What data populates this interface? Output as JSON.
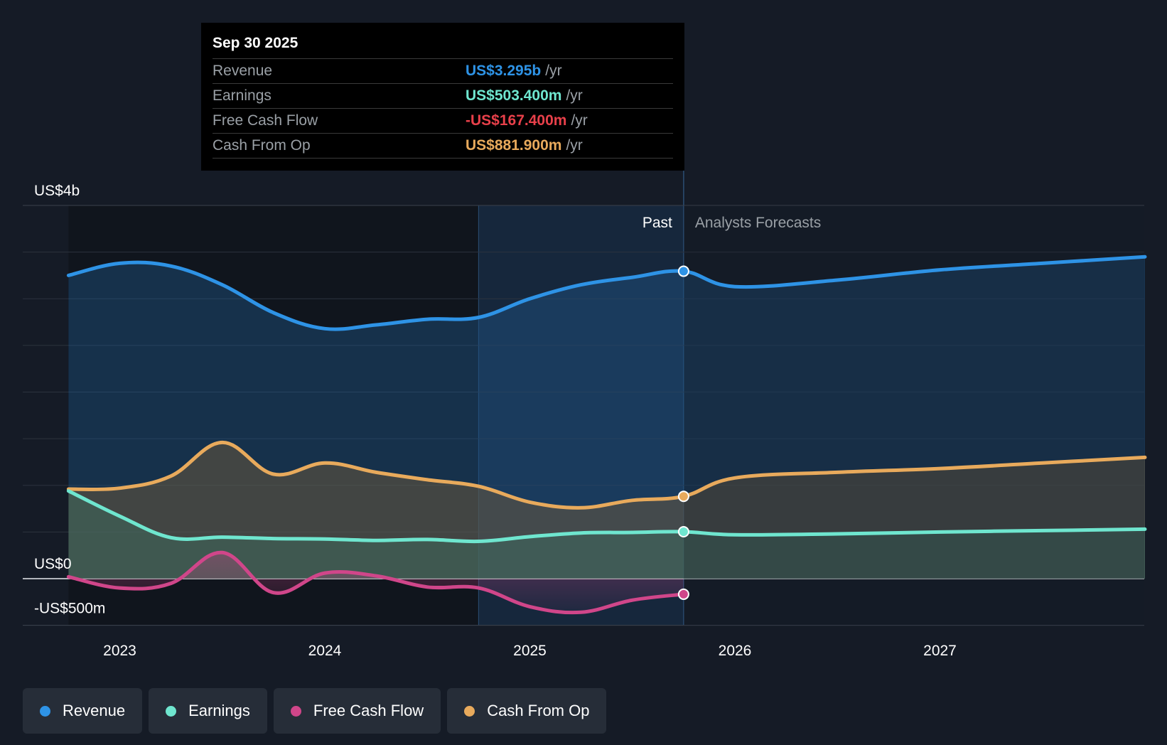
{
  "tooltip": {
    "date": "Sep 30 2025",
    "rows": [
      {
        "label": "Revenue",
        "value": "US$3.295b",
        "unit": "/yr",
        "color": "#2e93e6"
      },
      {
        "label": "Earnings",
        "value": "US$503.400m",
        "unit": "/yr",
        "color": "#6fe6cf"
      },
      {
        "label": "Free Cash Flow",
        "value": "-US$167.400m",
        "unit": "/yr",
        "color": "#e8404a"
      },
      {
        "label": "Cash From Op",
        "value": "US$881.900m",
        "unit": "/yr",
        "color": "#e8aa5c"
      }
    ]
  },
  "legend": [
    {
      "label": "Revenue",
      "color": "#2e93e6"
    },
    {
      "label": "Earnings",
      "color": "#6fe6cf"
    },
    {
      "label": "Free Cash Flow",
      "color": "#d0468a"
    },
    {
      "label": "Cash From Op",
      "color": "#e8aa5c"
    }
  ],
  "chart_data": {
    "type": "line",
    "ylim": [
      -500,
      4000
    ],
    "y_tick_labels": [
      {
        "value": 4000,
        "label": "US$4b"
      },
      {
        "value": 0,
        "label": "US$0"
      },
      {
        "value": -500,
        "label": "-US$500m"
      }
    ],
    "xlim": [
      2022.5,
      2028.0
    ],
    "x_ticks": [
      {
        "value": 2023,
        "label": "2023"
      },
      {
        "value": 2024,
        "label": "2024"
      },
      {
        "value": 2025,
        "label": "2025"
      },
      {
        "value": 2026,
        "label": "2026"
      },
      {
        "value": 2027,
        "label": "2027"
      }
    ],
    "past_label": "Past",
    "forecast_label": "Analysts Forecasts",
    "past_end": 2025.75,
    "highlight_start": 2024.75,
    "series": [
      {
        "name": "Revenue",
        "color": "#2e93e6",
        "x": [
          2022.75,
          2023.0,
          2023.25,
          2023.5,
          2023.75,
          2024.0,
          2024.25,
          2024.5,
          2024.75,
          2025.0,
          2025.25,
          2025.5,
          2025.75,
          2026.0,
          2026.5,
          2027.0,
          2027.5,
          2028.0
        ],
        "y": [
          3250,
          3380,
          3350,
          3150,
          2850,
          2680,
          2720,
          2780,
          2800,
          3000,
          3150,
          3230,
          3295,
          3130,
          3200,
          3310,
          3380,
          3450
        ]
      },
      {
        "name": "Earnings",
        "color": "#6fe6cf",
        "x": [
          2022.75,
          2023.0,
          2023.25,
          2023.5,
          2023.75,
          2024.0,
          2024.25,
          2024.5,
          2024.75,
          2025.0,
          2025.25,
          2025.5,
          2025.75,
          2026.0,
          2026.5,
          2027.0,
          2027.5,
          2028.0
        ],
        "y": [
          940,
          670,
          440,
          445,
          430,
          425,
          410,
          420,
          400,
          450,
          490,
          495,
          503,
          470,
          480,
          500,
          515,
          530
        ]
      },
      {
        "name": "Free Cash Flow",
        "color": "#d0468a",
        "x": [
          2022.75,
          2023.0,
          2023.25,
          2023.5,
          2023.75,
          2024.0,
          2024.25,
          2024.5,
          2024.75,
          2025.0,
          2025.25,
          2025.5,
          2025.75
        ],
        "y": [
          20,
          -100,
          -50,
          280,
          -150,
          60,
          30,
          -90,
          -100,
          -300,
          -360,
          -230,
          -167
        ]
      },
      {
        "name": "Cash From Op",
        "color": "#e8aa5c",
        "x": [
          2022.75,
          2023.0,
          2023.25,
          2023.5,
          2023.75,
          2024.0,
          2024.25,
          2024.5,
          2024.75,
          2025.0,
          2025.25,
          2025.5,
          2025.75,
          2026.0,
          2026.5,
          2027.0,
          2027.5,
          2028.0
        ],
        "y": [
          960,
          970,
          1100,
          1460,
          1120,
          1240,
          1140,
          1060,
          990,
          820,
          760,
          840,
          882,
          1080,
          1140,
          1180,
          1240,
          1300
        ]
      }
    ]
  }
}
